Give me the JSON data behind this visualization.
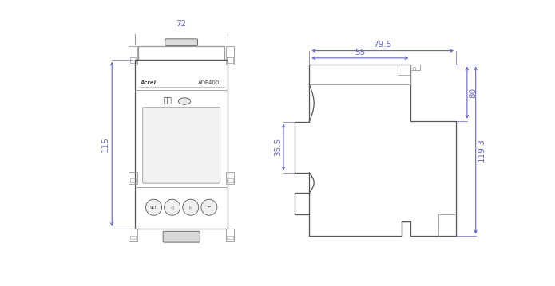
{
  "bg_color": "#ffffff",
  "line_color": "#999999",
  "line_color2": "#555555",
  "dim_color": "#6666bb",
  "fig_width": 6.95,
  "fig_height": 3.59,
  "front_view": {
    "label_brand": "Acrel",
    "label_model": "ADF400L",
    "label_ir": "红外",
    "dim_width": "72",
    "dim_height": "115"
  },
  "side_view": {
    "dim_total_width": "79.5",
    "dim_inner_width": "55",
    "dim_total_height": "119.3",
    "dim_mid_height": "80",
    "dim_clip_height": "35.5"
  }
}
